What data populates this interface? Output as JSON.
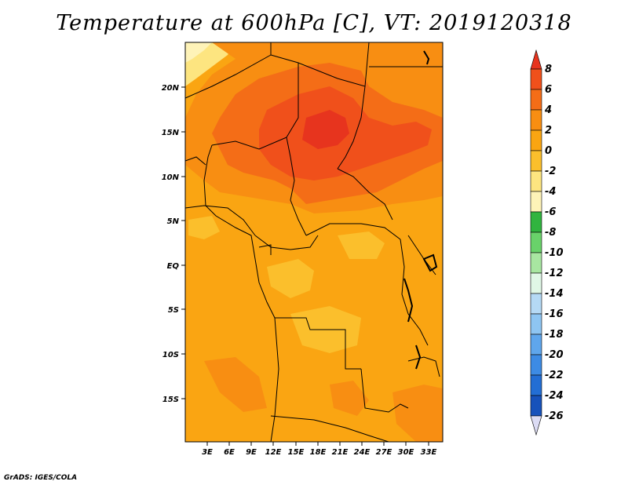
{
  "title": "Temperature at 600hPa [C], VT: 2019120318",
  "credit": "GrADS: IGES/COLA",
  "map": {
    "lat_labels": [
      "20N",
      "15N",
      "10N",
      "5N",
      "EQ",
      "5S",
      "10S",
      "15S"
    ],
    "lon_labels": [
      "3E",
      "6E",
      "9E",
      "12E",
      "15E",
      "18E",
      "21E",
      "24E",
      "27E",
      "30E",
      "33E"
    ]
  },
  "colorbar": {
    "labels": [
      "8",
      "6",
      "4",
      "2",
      "0",
      "-2",
      "-4",
      "-6",
      "-8",
      "-10",
      "-12",
      "-14",
      "-16",
      "-18",
      "-20",
      "-22",
      "-24",
      "-26"
    ],
    "colors": [
      "#e7341e",
      "#f0501b",
      "#f46d17",
      "#f88e12",
      "#faa512",
      "#fbbf2c",
      "#fde580",
      "#fef3b8",
      "#31b43f",
      "#69d26a",
      "#a8e6a1",
      "#e0f7e6",
      "#b5d9f5",
      "#8ec5f2",
      "#5fa6ec",
      "#3d8be4",
      "#236ed4",
      "#1752bb",
      "#0e3a9b",
      "#0a1a6a"
    ]
  }
}
